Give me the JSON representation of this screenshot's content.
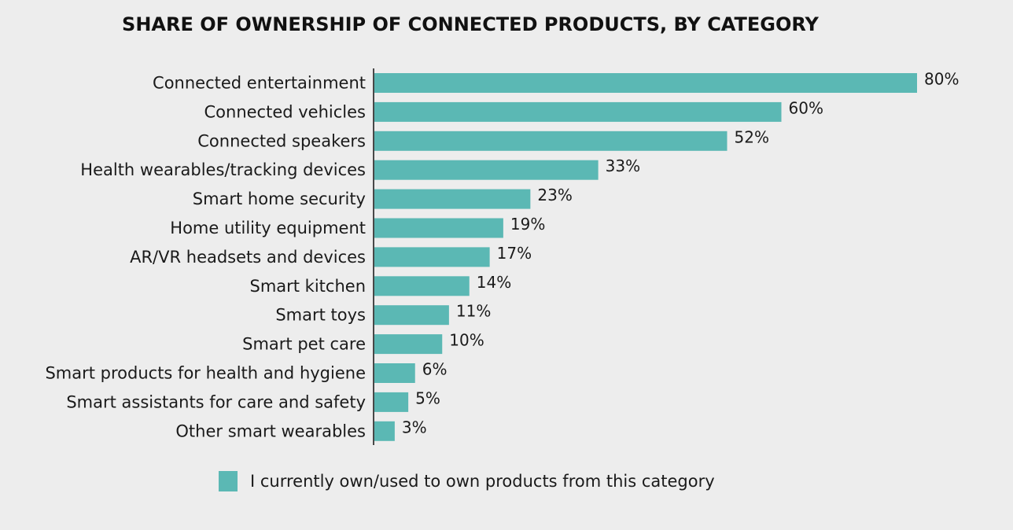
{
  "chart_data": {
    "type": "bar",
    "orientation": "horizontal",
    "title": "SHARE OF OWNERSHIP OF CONNECTED PRODUCTS, BY CATEGORY",
    "categories": [
      "Connected entertainment",
      "Connected vehicles",
      "Connected speakers",
      "Health wearables/tracking devices",
      "Smart home security",
      "Home utility equipment",
      "AR/VR headsets and devices",
      "Smart kitchen",
      "Smart toys",
      "Smart pet care",
      "Smart products for health and hygiene",
      "Smart assistants for care and safety",
      "Other smart wearables"
    ],
    "series": [
      {
        "name": "I currently own/used to own products from this category",
        "values": [
          80,
          60,
          52,
          33,
          23,
          19,
          17,
          14,
          11,
          10,
          6,
          5,
          3
        ],
        "value_labels": [
          "80%",
          "60%",
          "52%",
          "33%",
          "23%",
          "19%",
          "17%",
          "14%",
          "11%",
          "10%",
          "6%",
          "5%",
          "3%"
        ]
      }
    ],
    "xlim": [
      0,
      80
    ],
    "unit": "%",
    "grid": false,
    "legend_position": "bottom",
    "colors": {
      "bar": "#5bb8b4",
      "background": "#ededed",
      "axis": "#111111"
    }
  }
}
